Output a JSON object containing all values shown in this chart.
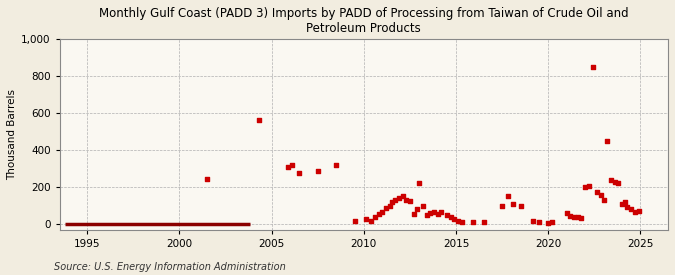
{
  "title": "Monthly Gulf Coast (PADD 3) Imports by PADD of Processing from Taiwan of Crude Oil and\nPetroleum Products",
  "ylabel": "Thousand Barrels",
  "source": "Source: U.S. Energy Information Administration",
  "background_color": "#f2ede0",
  "plot_bg_color": "#faf8f2",
  "xlim": [
    1993.5,
    2026.5
  ],
  "ylim": [
    -30,
    1000
  ],
  "yticks": [
    0,
    200,
    400,
    600,
    800,
    1000
  ],
  "xticks": [
    1995,
    2000,
    2005,
    2010,
    2015,
    2020,
    2025
  ],
  "scatter_color": "#cc0000",
  "line_color": "#8b0000",
  "line_y": 0,
  "line_x_start": 1993.8,
  "line_x_end": 2003.8,
  "data_points": [
    [
      2001.5,
      245
    ],
    [
      2004.3,
      560
    ],
    [
      2005.9,
      310
    ],
    [
      2006.1,
      320
    ],
    [
      2006.5,
      275
    ],
    [
      2007.5,
      285
    ],
    [
      2008.5,
      320
    ],
    [
      2009.5,
      15
    ],
    [
      2010.1,
      30
    ],
    [
      2010.4,
      20
    ],
    [
      2010.6,
      40
    ],
    [
      2010.8,
      55
    ],
    [
      2011.0,
      65
    ],
    [
      2011.2,
      85
    ],
    [
      2011.4,
      100
    ],
    [
      2011.5,
      120
    ],
    [
      2011.7,
      130
    ],
    [
      2011.9,
      140
    ],
    [
      2012.1,
      150
    ],
    [
      2012.3,
      130
    ],
    [
      2012.5,
      125
    ],
    [
      2012.7,
      55
    ],
    [
      2012.9,
      80
    ],
    [
      2013.0,
      220
    ],
    [
      2013.2,
      100
    ],
    [
      2013.4,
      50
    ],
    [
      2013.6,
      60
    ],
    [
      2013.8,
      65
    ],
    [
      2014.0,
      55
    ],
    [
      2014.2,
      65
    ],
    [
      2014.5,
      50
    ],
    [
      2014.7,
      40
    ],
    [
      2014.9,
      30
    ],
    [
      2015.1,
      20
    ],
    [
      2015.3,
      10
    ],
    [
      2015.9,
      10
    ],
    [
      2016.5,
      10
    ],
    [
      2017.5,
      100
    ],
    [
      2017.8,
      150
    ],
    [
      2018.1,
      110
    ],
    [
      2018.5,
      100
    ],
    [
      2019.2,
      20
    ],
    [
      2019.5,
      10
    ],
    [
      2020.0,
      5
    ],
    [
      2020.2,
      10
    ],
    [
      2021.0,
      60
    ],
    [
      2021.2,
      45
    ],
    [
      2021.4,
      40
    ],
    [
      2021.6,
      40
    ],
    [
      2021.8,
      35
    ],
    [
      2022.0,
      200
    ],
    [
      2022.2,
      205
    ],
    [
      2022.45,
      850
    ],
    [
      2022.65,
      175
    ],
    [
      2022.85,
      160
    ],
    [
      2023.05,
      130
    ],
    [
      2023.2,
      450
    ],
    [
      2023.4,
      240
    ],
    [
      2023.6,
      230
    ],
    [
      2023.8,
      220
    ],
    [
      2024.0,
      110
    ],
    [
      2024.15,
      120
    ],
    [
      2024.3,
      95
    ],
    [
      2024.5,
      80
    ],
    [
      2024.7,
      65
    ],
    [
      2024.9,
      70
    ]
  ]
}
